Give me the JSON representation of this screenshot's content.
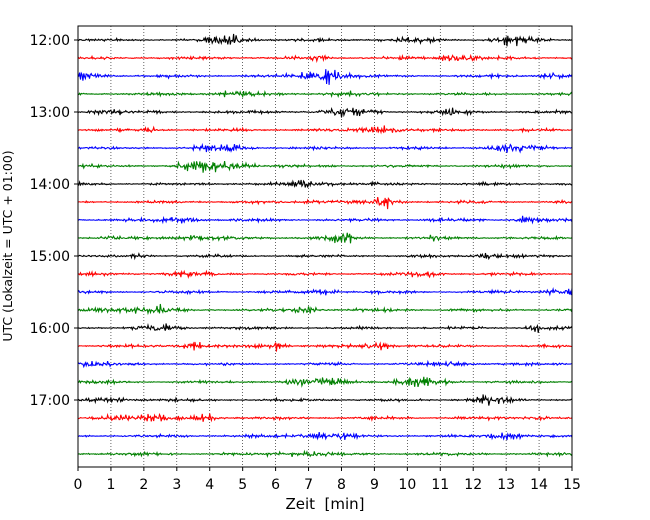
{
  "chart_data": {
    "type": "line",
    "title": "",
    "xlabel": "Zeit  [min]",
    "ylabel": "UTC (Lokalzeit = UTC + 01:00)",
    "xlim": [
      0,
      15
    ],
    "x_ticks": [
      0,
      1,
      2,
      3,
      4,
      5,
      6,
      7,
      8,
      9,
      10,
      11,
      12,
      13,
      14,
      15
    ],
    "y_tick_labels": [
      "12:00",
      "13:00",
      "14:00",
      "15:00",
      "16:00",
      "17:00"
    ],
    "trace_minutes": 15,
    "grid": {
      "x": true,
      "y": false
    },
    "colors": [
      "#000000",
      "#ff0000",
      "#0000ff",
      "#008000"
    ],
    "traces": [
      {
        "start": "12:00",
        "color": "#000000"
      },
      {
        "start": "12:15",
        "color": "#ff0000"
      },
      {
        "start": "12:30",
        "color": "#0000ff"
      },
      {
        "start": "12:45",
        "color": "#008000"
      },
      {
        "start": "13:00",
        "color": "#000000"
      },
      {
        "start": "13:15",
        "color": "#ff0000"
      },
      {
        "start": "13:30",
        "color": "#0000ff"
      },
      {
        "start": "13:45",
        "color": "#008000"
      },
      {
        "start": "14:00",
        "color": "#000000"
      },
      {
        "start": "14:15",
        "color": "#ff0000"
      },
      {
        "start": "14:30",
        "color": "#0000ff"
      },
      {
        "start": "14:45",
        "color": "#008000"
      },
      {
        "start": "15:00",
        "color": "#000000"
      },
      {
        "start": "15:15",
        "color": "#ff0000"
      },
      {
        "start": "15:30",
        "color": "#0000ff"
      },
      {
        "start": "15:45",
        "color": "#008000"
      },
      {
        "start": "16:00",
        "color": "#000000"
      },
      {
        "start": "16:15",
        "color": "#ff0000"
      },
      {
        "start": "16:30",
        "color": "#0000ff"
      },
      {
        "start": "16:45",
        "color": "#008000"
      },
      {
        "start": "17:00",
        "color": "#000000"
      },
      {
        "start": "17:15",
        "color": "#ff0000"
      },
      {
        "start": "17:30",
        "color": "#0000ff"
      },
      {
        "start": "17:45",
        "color": "#008000"
      }
    ]
  }
}
